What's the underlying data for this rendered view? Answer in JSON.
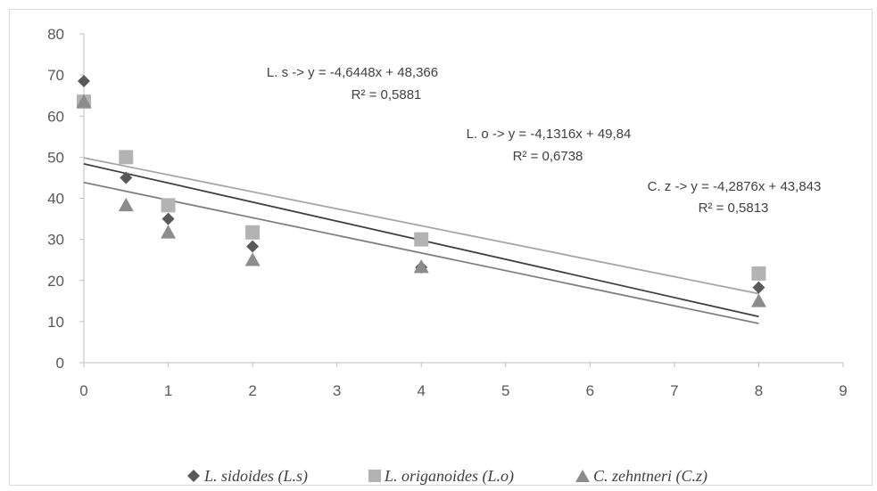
{
  "chart_data": {
    "type": "scatter",
    "xlim": [
      0,
      9
    ],
    "ylim": [
      0,
      80
    ],
    "x_ticks": [
      "0",
      "1",
      "2",
      "3",
      "4",
      "5",
      "6",
      "7",
      "8",
      "9"
    ],
    "y_ticks": [
      "0",
      "10",
      "20",
      "30",
      "40",
      "50",
      "60",
      "70",
      "80"
    ],
    "grid": false,
    "legend_position": "bottom",
    "series": [
      {
        "name": "L. sidoides (L.s)",
        "marker": "diamond",
        "color": "#595959",
        "line_color": "#404040",
        "points": [
          [
            0,
            68.5
          ],
          [
            0.5,
            45
          ],
          [
            1,
            35
          ],
          [
            2,
            28.3
          ],
          [
            4,
            23.2
          ],
          [
            8,
            18.3
          ]
        ],
        "trend": {
          "slope": -4.6448,
          "intercept": 48.366
        },
        "equation": "L. s -> y = -4,6448x + 48,366",
        "r2": "R² = 0,5881"
      },
      {
        "name": "L. origanoides (L.o)",
        "marker": "square",
        "color": "#b3b3b3",
        "line_color": "#a6a6a6",
        "points": [
          [
            0,
            63.5
          ],
          [
            0.5,
            50
          ],
          [
            1,
            38.3
          ],
          [
            2,
            31.7
          ],
          [
            4,
            30
          ],
          [
            8,
            21.7
          ]
        ],
        "trend": {
          "slope": -4.1316,
          "intercept": 49.84
        },
        "equation": "L. o -> y = -4,1316x + 49,84",
        "r2": "R² = 0,6738"
      },
      {
        "name": "C. zehntneri (C.z)",
        "marker": "triangle",
        "color": "#8c8c8c",
        "line_color": "#7f7f7f",
        "points": [
          [
            0,
            63.5
          ],
          [
            0.5,
            38.3
          ],
          [
            1,
            31.7
          ],
          [
            2,
            25
          ],
          [
            4,
            23.3
          ],
          [
            8,
            15
          ]
        ],
        "trend": {
          "slope": -4.2876,
          "intercept": 43.843
        },
        "equation": "C. z -> y = -4,2876x + 43,843",
        "r2": "R² = 0,5813"
      }
    ]
  }
}
